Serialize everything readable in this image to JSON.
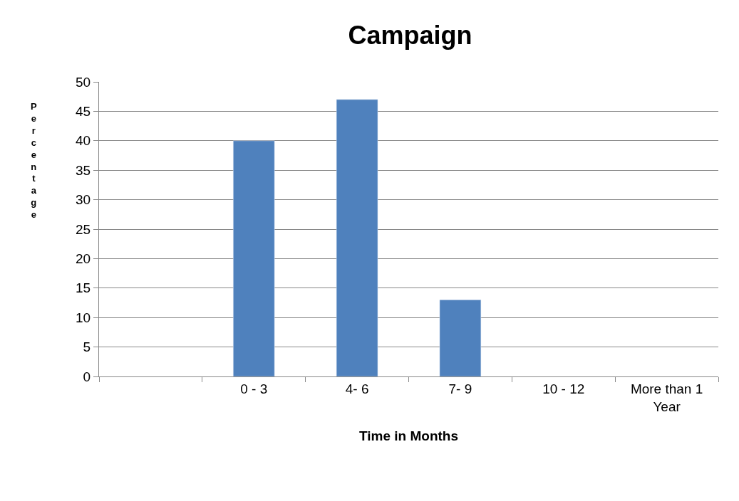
{
  "chart_data": {
    "type": "bar",
    "title": "Campaign",
    "xlabel": "Time in Months",
    "ylabel": "Percentage",
    "categories": [
      null,
      "0 - 3",
      "4- 6",
      "7- 9",
      "10 - 12",
      "More than 1 Year"
    ],
    "values": [
      null,
      40,
      47,
      13,
      null,
      null
    ],
    "color": "#4f81bd",
    "ylim": [
      0,
      50
    ],
    "yticks": [
      0,
      5,
      10,
      15,
      20,
      25,
      30,
      35,
      40,
      45,
      50
    ],
    "grid": "y",
    "legend": false
  }
}
